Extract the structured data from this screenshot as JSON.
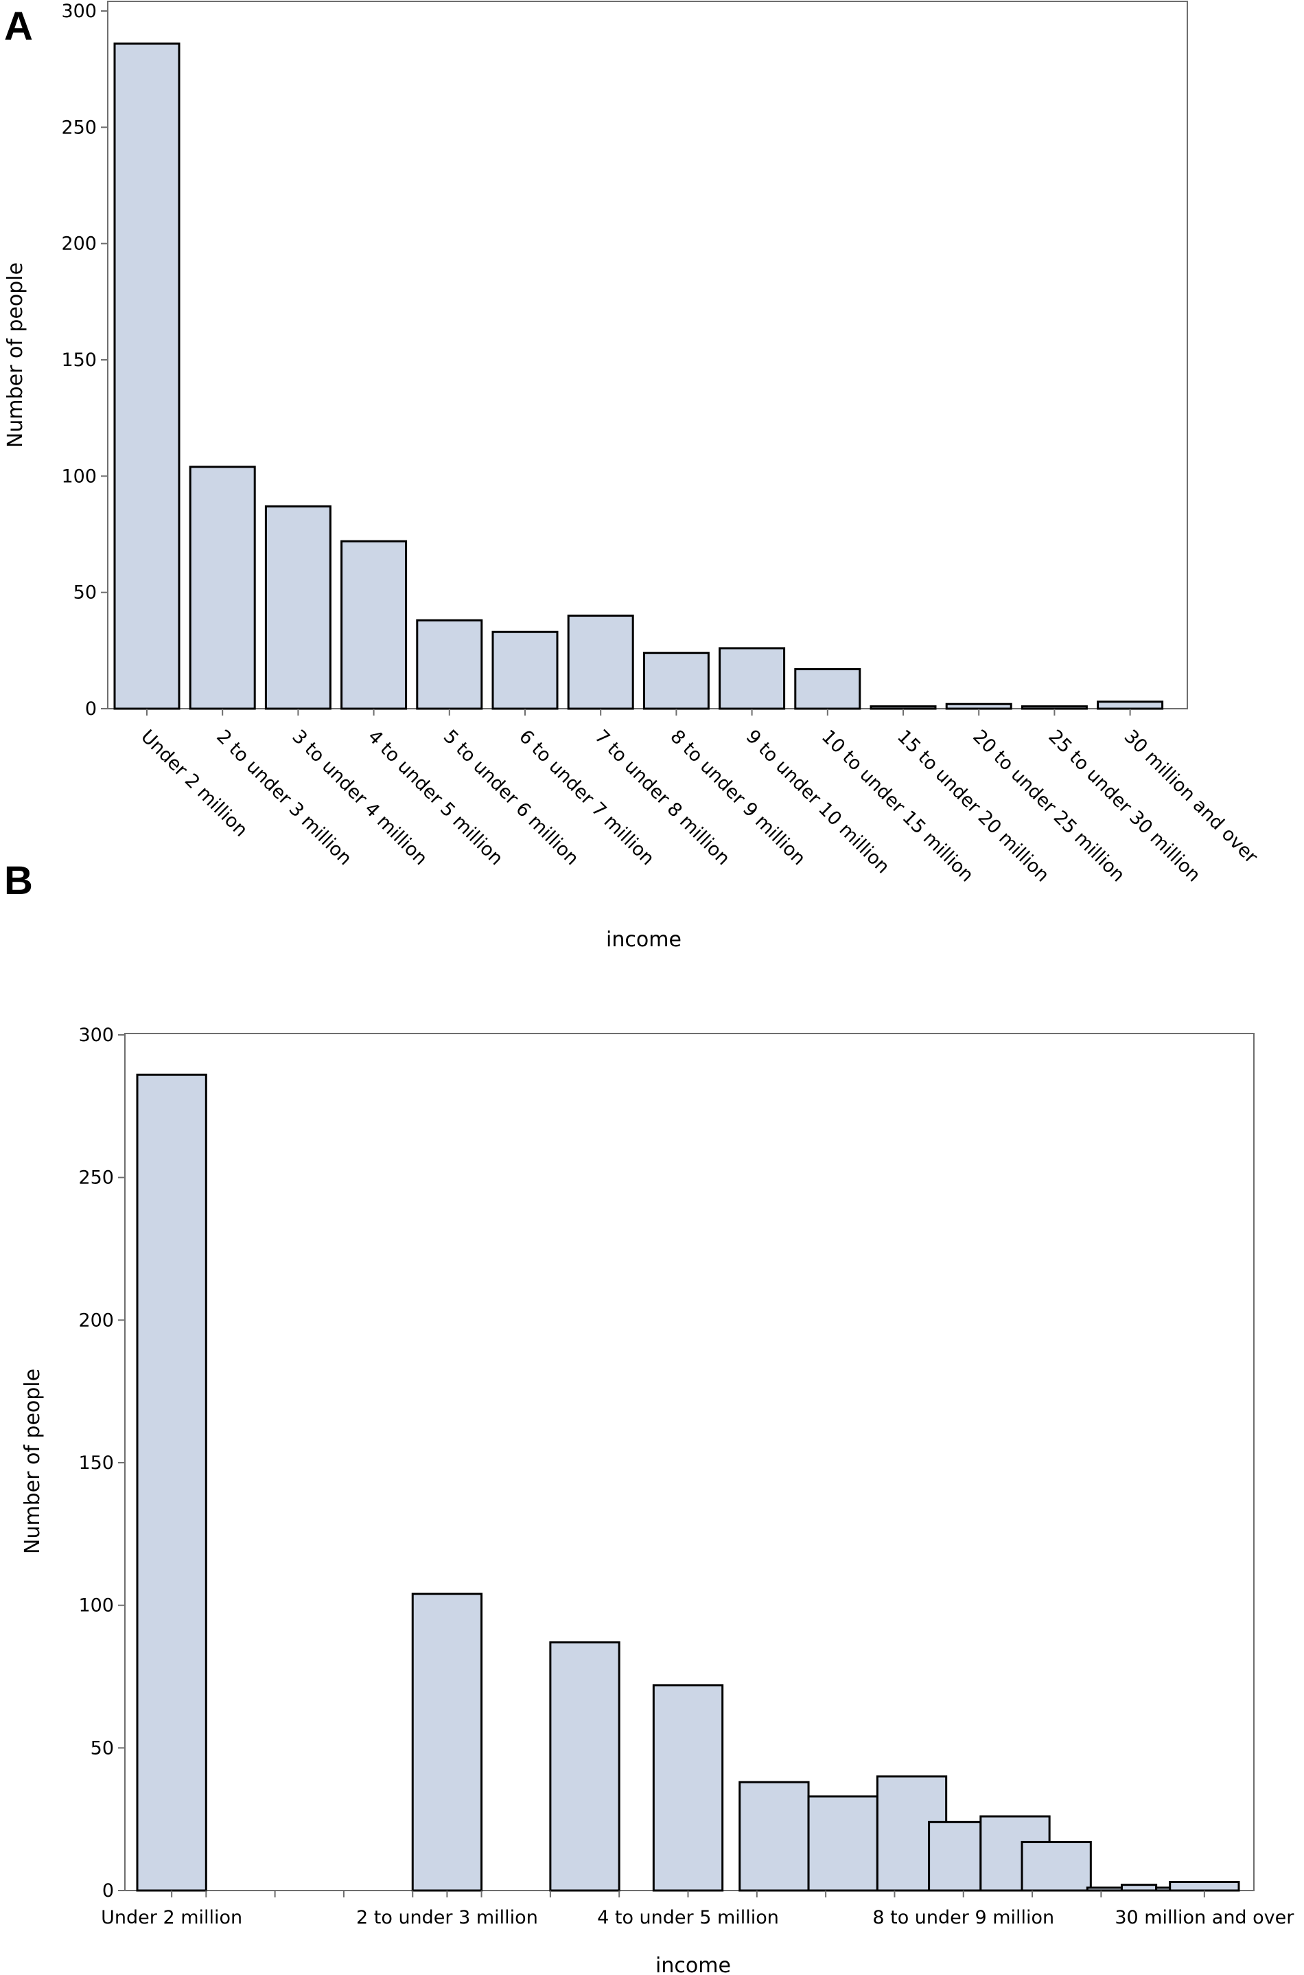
{
  "chart_data": [
    {
      "panel": "A",
      "type": "bar",
      "xlabel": "income",
      "ylabel": "Number of people",
      "ylim": [
        0,
        300
      ],
      "yticks": [
        0,
        50,
        100,
        150,
        200,
        250,
        300
      ],
      "categories": [
        "Under 2 million",
        "2 to under 3 million",
        "3 to under 4 million",
        "4 to under 5 million",
        "5 to under 6 million",
        "6 to under 7 million",
        "7 to under 8 million",
        "8 to under 9 million",
        "9 to under 10 million",
        "10 to under 15 million",
        "15 to under 20 million",
        "20 to under 25 million",
        "25 to under 30 million",
        "30 million and over"
      ],
      "values": [
        286,
        104,
        87,
        72,
        38,
        33,
        40,
        24,
        26,
        17,
        1,
        2,
        1,
        3
      ]
    },
    {
      "panel": "B",
      "type": "bar",
      "xlabel": "income",
      "ylabel": "Number of people",
      "ylim": [
        0,
        300
      ],
      "yticks": [
        0,
        50,
        100,
        150,
        200,
        250,
        300
      ],
      "xlim": [
        0,
        32
      ],
      "bars": [
        {
          "from": 0,
          "to": 2,
          "value": 286
        },
        {
          "from": 8,
          "to": 10,
          "value": 104
        },
        {
          "from": 12,
          "to": 14,
          "value": 87
        },
        {
          "from": 15,
          "to": 17,
          "value": 72
        },
        {
          "from": 17.5,
          "to": 19.5,
          "value": 38
        },
        {
          "from": 19.5,
          "to": 21.5,
          "value": 33
        },
        {
          "from": 21.5,
          "to": 23.5,
          "value": 40
        },
        {
          "from": 23,
          "to": 24.5,
          "value": 24
        },
        {
          "from": 24.5,
          "to": 26.5,
          "value": 26
        },
        {
          "from": 25.7,
          "to": 27.7,
          "value": 17
        },
        {
          "from": 27.6,
          "to": 28.6,
          "value": 1
        },
        {
          "from": 28.6,
          "to": 29.6,
          "value": 2
        },
        {
          "from": 29.6,
          "to": 30.6,
          "value": 1
        },
        {
          "from": 30,
          "to": 32,
          "value": 3
        }
      ],
      "xticks": [
        {
          "pos": 1,
          "label": "Under 2 million"
        },
        {
          "pos": 9,
          "label": "2 to under 3 million"
        },
        {
          "pos": 16,
          "label": "4 to under 5 million"
        },
        {
          "pos": 24,
          "label": "8 to under 9 million"
        },
        {
          "pos": 31,
          "label": "30 million and over"
        }
      ],
      "minor_ticks": [
        2,
        4,
        6,
        8,
        10,
        12,
        14,
        18,
        20,
        22,
        26,
        28
      ]
    }
  ],
  "panel_labels": [
    "A",
    "B"
  ]
}
